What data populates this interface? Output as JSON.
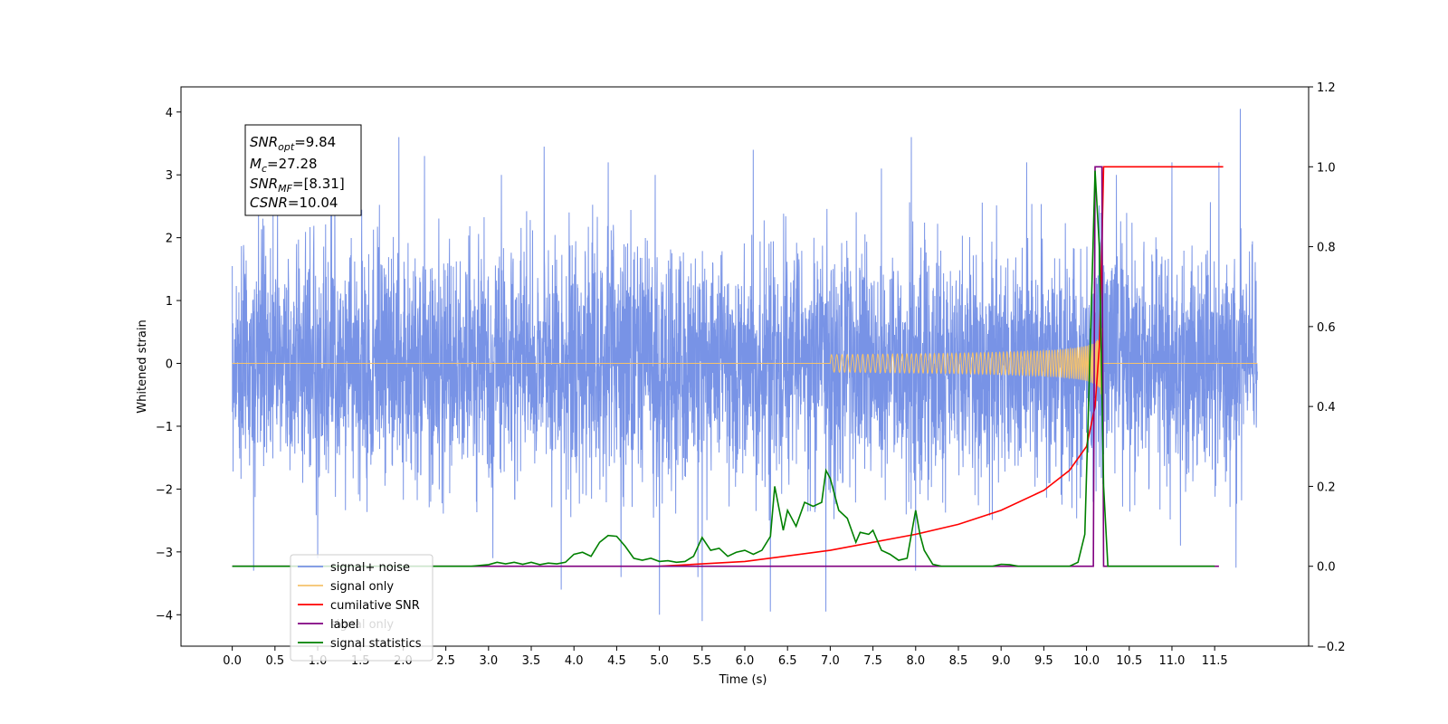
{
  "chart_data": {
    "type": "line",
    "xlabel": "Time (s)",
    "ylabel": "Whitened strain",
    "xlim": [
      -0.6,
      12.6
    ],
    "ylim": [
      -4.5,
      4.4
    ],
    "y2lim": [
      -0.2,
      1.2
    ],
    "x_ticks": [
      0.0,
      0.5,
      1.0,
      1.5,
      2.0,
      2.5,
      3.0,
      3.5,
      4.0,
      4.5,
      5.0,
      5.5,
      6.0,
      6.5,
      7.0,
      7.5,
      8.0,
      8.5,
      9.0,
      9.5,
      10.0,
      10.5,
      11.0,
      11.5
    ],
    "x_tick_labels": [
      "0.0",
      "0.5",
      "1.0",
      "1.5",
      "2.0",
      "2.5",
      "3.0",
      "3.5",
      "4.0",
      "4.5",
      "5.0",
      "5.5",
      "6.0",
      "6.5",
      "7.0",
      "7.5",
      "8.0",
      "8.5",
      "9.0",
      "9.5",
      "10.0",
      "10.5",
      "11.0",
      "11.5"
    ],
    "y_ticks": [
      -4,
      -3,
      -2,
      -1,
      0,
      1,
      2,
      3,
      4
    ],
    "y_tick_labels": [
      "−4",
      "−3",
      "−2",
      "−1",
      "0",
      "1",
      "2",
      "3",
      "4"
    ],
    "y2_ticks": [
      -0.2,
      0.0,
      0.2,
      0.4,
      0.6,
      0.8,
      1.0,
      1.2
    ],
    "y2_tick_labels": [
      "−0.2",
      "0.0",
      "0.2",
      "0.4",
      "0.6",
      "0.8",
      "1.0",
      "1.2"
    ],
    "annotation": {
      "lines": [
        {
          "base": "SNR",
          "sub": "opt",
          "rest": "=9.84"
        },
        {
          "base": "M",
          "sub": "c",
          "rest": "=27.28"
        },
        {
          "base": "SNR",
          "sub": "MF",
          "rest": "=[8.31]"
        },
        {
          "base": "CSNR",
          "sub": "",
          "rest": "=10.04"
        }
      ]
    },
    "legend": {
      "placement": "lower-left",
      "entries": [
        {
          "label": "signal+ noise",
          "color": "#7893e6"
        },
        {
          "label": "signal only",
          "color": "#f5c26b"
        },
        {
          "label": "cumilative SNR",
          "color": "#ff0000"
        },
        {
          "label": "label",
          "color": "#800080",
          "overlap_text": "signal only"
        },
        {
          "label": "signal statistics",
          "color": "#008000"
        }
      ]
    },
    "series": [
      {
        "name": "signal+ noise",
        "axis": "left",
        "color": "#7893e6",
        "x_range": [
          0.0,
          12.0
        ],
        "noise_std": 0.95,
        "typical_max": 2.3,
        "typical_min": -2.2,
        "spikes": [
          [
            0.25,
            -3.3
          ],
          [
            1.0,
            -3.1
          ],
          [
            1.2,
            2.7
          ],
          [
            1.95,
            3.6
          ],
          [
            2.25,
            3.3
          ],
          [
            3.05,
            -3.1
          ],
          [
            3.15,
            3.0
          ],
          [
            3.65,
            3.45
          ],
          [
            3.85,
            -3.6
          ],
          [
            4.4,
            3.2
          ],
          [
            4.55,
            -3.4
          ],
          [
            4.95,
            3.0
          ],
          [
            5.0,
            -4.0
          ],
          [
            5.45,
            -3.4
          ],
          [
            5.5,
            -4.1
          ],
          [
            6.1,
            3.4
          ],
          [
            6.3,
            -3.95
          ],
          [
            6.95,
            3.1
          ],
          [
            6.95,
            -3.95
          ],
          [
            7.6,
            3.1
          ],
          [
            8.0,
            -3.3
          ],
          [
            7.95,
            3.6
          ],
          [
            9.3,
            3.2
          ],
          [
            10.35,
            3.0
          ],
          [
            11.0,
            3.2
          ],
          [
            11.1,
            -2.9
          ],
          [
            11.55,
            3.2
          ],
          [
            11.8,
            4.05
          ],
          [
            11.75,
            -3.25
          ],
          [
            10.1,
            3.1
          ]
        ]
      },
      {
        "name": "signal only",
        "axis": "left",
        "color": "#f5c26b",
        "x_range": [
          0.0,
          12.0
        ],
        "chirp_start": 7.0,
        "chirp_end": 10.18,
        "peak_amplitude": 1.55
      },
      {
        "name": "cumilative SNR",
        "axis": "right",
        "color": "#ff0000",
        "points": [
          [
            5.0,
            0.0
          ],
          [
            6.0,
            0.012
          ],
          [
            7.0,
            0.04
          ],
          [
            8.0,
            0.08
          ],
          [
            8.5,
            0.105
          ],
          [
            9.0,
            0.14
          ],
          [
            9.5,
            0.19
          ],
          [
            9.8,
            0.24
          ],
          [
            10.0,
            0.3
          ],
          [
            10.1,
            0.4
          ],
          [
            10.15,
            0.55
          ],
          [
            10.18,
            0.8
          ],
          [
            10.2,
            1.0
          ],
          [
            11.6,
            1.0
          ]
        ]
      },
      {
        "name": "label",
        "axis": "right",
        "color": "#800080",
        "points": [
          [
            0.0,
            0.0
          ],
          [
            10.08,
            0.0
          ],
          [
            10.1,
            1.0
          ],
          [
            10.18,
            1.0
          ],
          [
            10.2,
            0.0
          ],
          [
            11.55,
            0.0
          ]
        ]
      },
      {
        "name": "signal statistics",
        "axis": "right",
        "color": "#008000",
        "points": [
          [
            0.0,
            0.0
          ],
          [
            2.8,
            0.0
          ],
          [
            3.0,
            0.004
          ],
          [
            3.1,
            0.01
          ],
          [
            3.2,
            0.006
          ],
          [
            3.3,
            0.01
          ],
          [
            3.4,
            0.005
          ],
          [
            3.5,
            0.01
          ],
          [
            3.6,
            0.004
          ],
          [
            3.7,
            0.008
          ],
          [
            3.8,
            0.006
          ],
          [
            3.9,
            0.01
          ],
          [
            4.0,
            0.03
          ],
          [
            4.1,
            0.035
          ],
          [
            4.2,
            0.025
          ],
          [
            4.3,
            0.06
          ],
          [
            4.4,
            0.077
          ],
          [
            4.5,
            0.075
          ],
          [
            4.6,
            0.05
          ],
          [
            4.7,
            0.02
          ],
          [
            4.8,
            0.015
          ],
          [
            4.9,
            0.02
          ],
          [
            5.0,
            0.012
          ],
          [
            5.1,
            0.014
          ],
          [
            5.2,
            0.01
          ],
          [
            5.3,
            0.012
          ],
          [
            5.4,
            0.025
          ],
          [
            5.5,
            0.072
          ],
          [
            5.6,
            0.04
          ],
          [
            5.7,
            0.045
          ],
          [
            5.8,
            0.025
          ],
          [
            5.9,
            0.035
          ],
          [
            6.0,
            0.04
          ],
          [
            6.1,
            0.03
          ],
          [
            6.2,
            0.04
          ],
          [
            6.3,
            0.075
          ],
          [
            6.35,
            0.2
          ],
          [
            6.45,
            0.09
          ],
          [
            6.5,
            0.14
          ],
          [
            6.6,
            0.1
          ],
          [
            6.7,
            0.16
          ],
          [
            6.8,
            0.15
          ],
          [
            6.9,
            0.16
          ],
          [
            6.95,
            0.24
          ],
          [
            7.0,
            0.22
          ],
          [
            7.1,
            0.14
          ],
          [
            7.2,
            0.12
          ],
          [
            7.3,
            0.06
          ],
          [
            7.35,
            0.085
          ],
          [
            7.45,
            0.08
          ],
          [
            7.5,
            0.09
          ],
          [
            7.6,
            0.04
          ],
          [
            7.7,
            0.03
          ],
          [
            7.8,
            0.015
          ],
          [
            7.9,
            0.02
          ],
          [
            8.0,
            0.14
          ],
          [
            8.05,
            0.08
          ],
          [
            8.1,
            0.04
          ],
          [
            8.2,
            0.005
          ],
          [
            8.3,
            0.0
          ],
          [
            8.9,
            0.0
          ],
          [
            9.0,
            0.005
          ],
          [
            9.1,
            0.004
          ],
          [
            9.2,
            0.0
          ],
          [
            9.8,
            0.0
          ],
          [
            9.9,
            0.01
          ],
          [
            9.98,
            0.08
          ],
          [
            10.05,
            0.6
          ],
          [
            10.1,
            0.99
          ],
          [
            10.15,
            0.8
          ],
          [
            10.2,
            0.2
          ],
          [
            10.25,
            0.0
          ],
          [
            11.5,
            0.0
          ]
        ]
      }
    ]
  }
}
